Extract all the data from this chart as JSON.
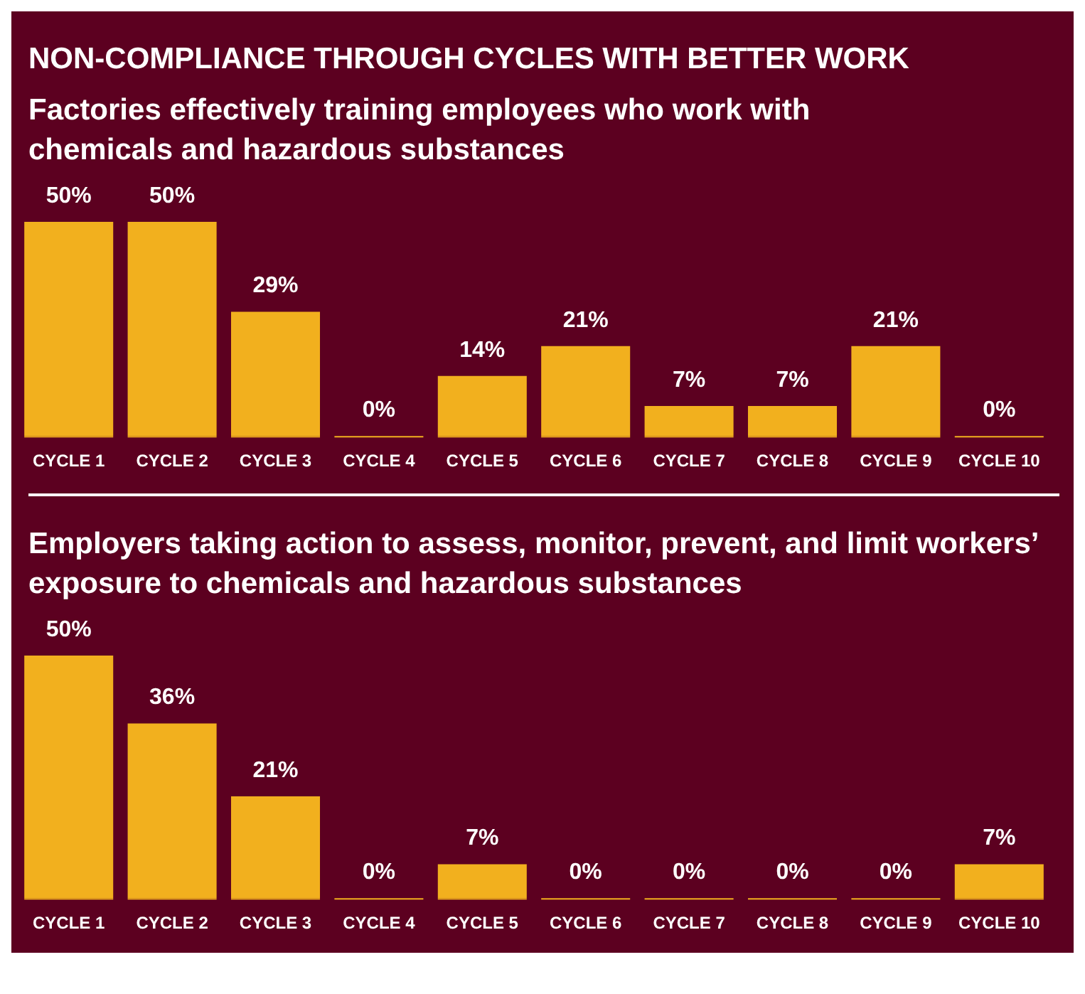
{
  "chart_data": [
    {
      "type": "bar",
      "title": "NON-COMPLIANCE THROUGH CYCLES WITH BETTER WORK",
      "subtitle": "Factories effectively training employees who work with chemicals and hazardous substances",
      "categories": [
        "CYCLE 1",
        "CYCLE 2",
        "CYCLE 3",
        "CYCLE 4",
        "CYCLE 5",
        "CYCLE 6",
        "CYCLE 7",
        "CYCLE 8",
        "CYCLE 9",
        "CYCLE 10"
      ],
      "values": [
        50,
        50,
        29,
        0,
        14,
        21,
        7,
        7,
        21,
        0
      ],
      "value_labels": [
        "50%",
        "50%",
        "29%",
        "0%",
        "14%",
        "21%",
        "7%",
        "7%",
        "21%",
        "0%"
      ],
      "color": "#f2b01e",
      "grid": false,
      "legend": false,
      "tick_labels": "x"
    },
    {
      "type": "bar",
      "title": "Employers taking action to assess, monitor, prevent, and limit workers’ exposure to chemicals and hazardous substances",
      "categories": [
        "CYCLE 1",
        "CYCLE 2",
        "CYCLE 3",
        "CYCLE 4",
        "CYCLE 5",
        "CYCLE 6",
        "CYCLE 7",
        "CYCLE 8",
        "CYCLE 9",
        "CYCLE 10"
      ],
      "values": [
        50,
        36,
        21,
        0,
        7,
        0,
        0,
        0,
        0,
        7
      ],
      "value_labels": [
        "50%",
        "36%",
        "21%",
        "0%",
        "7%",
        "0%",
        "0%",
        "0%",
        "0%",
        "7%"
      ],
      "color": "#f2b01e",
      "grid": false,
      "legend": false,
      "tick_labels": "x"
    }
  ]
}
